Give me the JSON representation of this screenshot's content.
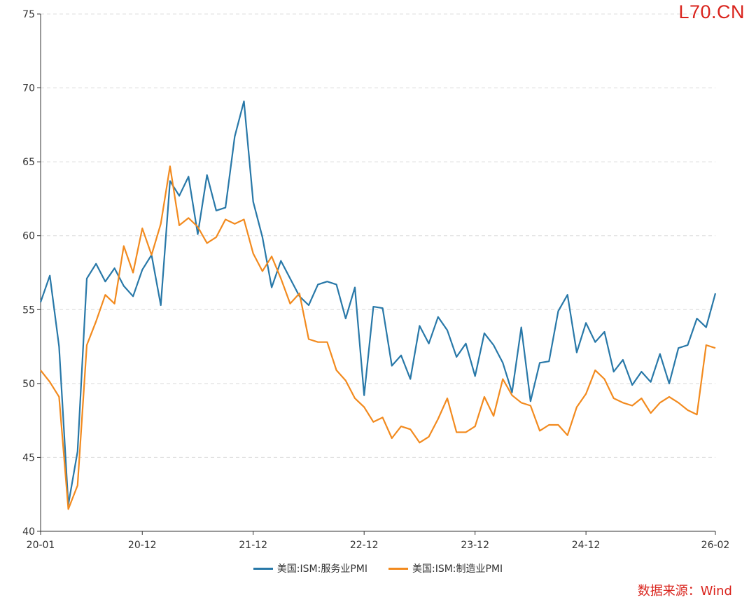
{
  "watermark": "L70.CN",
  "source": "数据来源：Wind",
  "chart_data": {
    "type": "line",
    "title": "",
    "xlabel": "",
    "ylabel": "",
    "ylim": [
      40,
      75
    ],
    "yticks": [
      "40",
      "45",
      "50",
      "55",
      "60",
      "65",
      "70",
      "75"
    ],
    "grid": "horizontal dashed",
    "legend_position": "bottom-center",
    "x_start": "2020-01",
    "x_end": "2026-02",
    "xtick_labels": [
      {
        "label": "20-01",
        "index": 0
      },
      {
        "label": "20-12",
        "index": 11
      },
      {
        "label": "21-12",
        "index": 23
      },
      {
        "label": "22-12",
        "index": 35
      },
      {
        "label": "23-12",
        "index": 47
      },
      {
        "label": "24-12",
        "index": 59
      },
      {
        "label": "26-02",
        "index": 73
      }
    ],
    "series": [
      {
        "name": "美国:ISM:服务业PMI",
        "color": "#2878a8",
        "values": [
          55.5,
          57.3,
          52.5,
          41.8,
          45.4,
          57.1,
          58.1,
          56.9,
          57.8,
          56.6,
          55.9,
          57.7,
          58.7,
          55.3,
          63.7,
          62.7,
          64.0,
          60.1,
          64.1,
          61.7,
          61.9,
          66.7,
          69.1,
          62.3,
          59.9,
          56.5,
          58.3,
          57.1,
          55.9,
          55.3,
          56.7,
          56.9,
          56.7,
          54.4,
          56.5,
          49.2,
          55.2,
          55.1,
          51.2,
          51.9,
          50.3,
          53.9,
          52.7,
          54.5,
          53.6,
          51.8,
          52.7,
          50.5,
          53.4,
          52.6,
          51.4,
          49.4,
          53.8,
          48.8,
          51.4,
          51.5,
          54.9,
          56.0,
          52.1,
          54.1,
          52.8,
          53.5,
          50.8,
          51.6,
          49.9,
          50.8,
          50.1,
          52.0,
          50.0,
          52.4,
          52.6,
          54.4,
          53.8,
          56.1
        ]
      },
      {
        "name": "美国:ISM:制造业PMI",
        "color": "#f28a1e",
        "values": [
          50.9,
          50.1,
          49.1,
          41.5,
          43.1,
          52.6,
          54.2,
          56.0,
          55.4,
          59.3,
          57.5,
          60.5,
          58.7,
          60.8,
          64.7,
          60.7,
          61.2,
          60.6,
          59.5,
          59.9,
          61.1,
          60.8,
          61.1,
          58.8,
          57.6,
          58.6,
          57.1,
          55.4,
          56.1,
          53.0,
          52.8,
          52.8,
          50.9,
          50.2,
          49.0,
          48.4,
          47.4,
          47.7,
          46.3,
          47.1,
          46.9,
          46.0,
          46.4,
          47.6,
          49.0,
          46.7,
          46.7,
          47.1,
          49.1,
          47.8,
          50.3,
          49.2,
          48.7,
          48.5,
          46.8,
          47.2,
          47.2,
          46.5,
          48.4,
          49.3,
          50.9,
          50.3,
          49.0,
          48.7,
          48.5,
          49.0,
          48.0,
          48.7,
          49.1,
          48.7,
          48.2,
          47.9,
          52.6,
          52.4
        ]
      }
    ]
  }
}
